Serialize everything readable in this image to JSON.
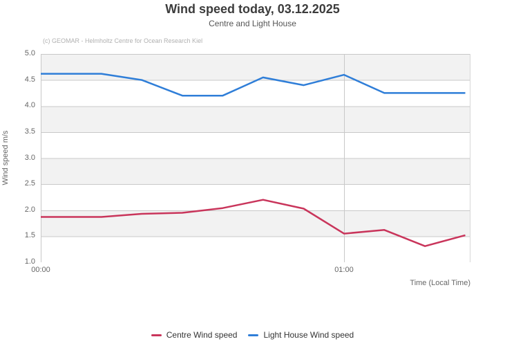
{
  "chart": {
    "title": "Wind speed today, 03.12.2025",
    "subtitle": "Centre and Light House",
    "credits": "(c) GEOMAR - Helmholtz Centre for Ocean Research Kiel"
  },
  "chart_data": {
    "type": "line",
    "title": "Wind speed today, 03.12.2025",
    "subtitle": "Centre and Light House",
    "credits": "(c) GEOMAR - Helmholtz Centre for Ocean Research Kiel",
    "xlabel": "Time (Local Time)",
    "ylabel": "Wind speed  m/s",
    "ylim": [
      1.0,
      5.0
    ],
    "y_tick_step": 0.5,
    "y_ticks": [
      5.0,
      4.5,
      4.0,
      3.5,
      3.0,
      2.5,
      2.0,
      1.5,
      1.0
    ],
    "x_ticks": [
      {
        "hour": 0,
        "label": "00:00"
      },
      {
        "hour": 1,
        "label": "01:00"
      }
    ],
    "x_range_hours": [
      0,
      1.417
    ],
    "x_hours": [
      -0.067,
      0.067,
      0.2,
      0.333,
      0.467,
      0.6,
      0.733,
      0.867,
      1.0,
      1.133,
      1.267,
      1.4
    ],
    "series": [
      {
        "name": "Centre Wind speed",
        "color": "#c9355b",
        "values": [
          1.87,
          1.87,
          1.87,
          1.93,
          1.95,
          2.04,
          2.2,
          2.03,
          1.55,
          1.62,
          1.31,
          1.52
        ]
      },
      {
        "name": "Light House Wind speed",
        "color": "#2f7ed8",
        "values": [
          4.62,
          4.62,
          4.62,
          4.5,
          4.2,
          4.2,
          4.55,
          4.4,
          4.6,
          4.25,
          4.25,
          4.25
        ]
      }
    ],
    "legend_position": "bottom-center",
    "grid": "horizontal 0.5 steps; vertical at hour ticks",
    "band_rows_gray": [
      [
        4.5,
        5.0
      ],
      [
        3.5,
        4.0
      ],
      [
        2.5,
        3.0
      ],
      [
        1.5,
        2.0
      ]
    ],
    "colors": {
      "plot_background": "#ffffff",
      "band": "#f2f2f2",
      "gridline": "#c8c8c8",
      "axis_line": "#aaaaaa",
      "plot_right_border": "#d6d6d6"
    }
  }
}
